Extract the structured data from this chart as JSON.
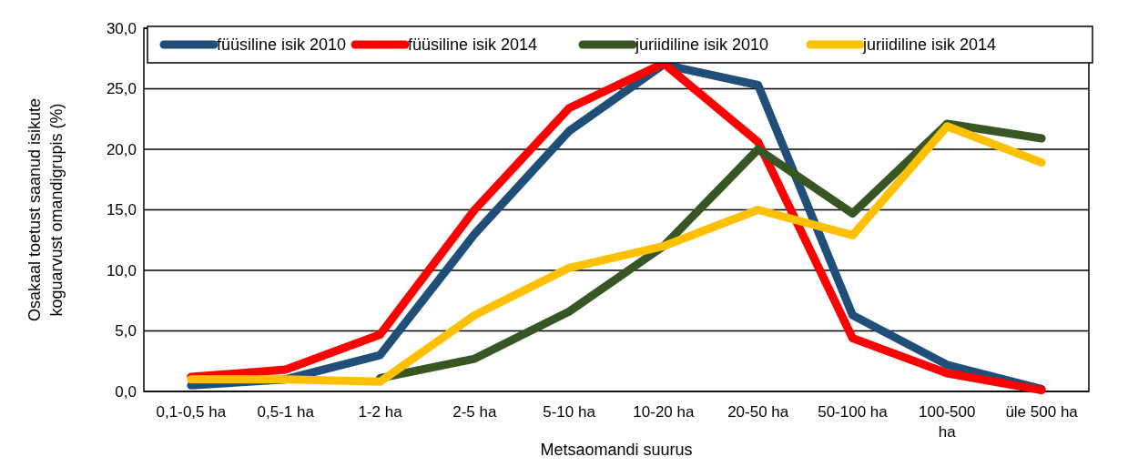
{
  "chart_data": {
    "type": "line",
    "xlabel": "Metsaomandi suurus",
    "ylabel": "Osakaal toetust saanud isikute koguarvust omandigrupis (%)",
    "categories": [
      "0,1-0,5 ha",
      "0,5-1 ha",
      "1-2 ha",
      "2-5 ha",
      "5-10 ha",
      "10-20 ha",
      "20-50 ha",
      "50-100 ha",
      "100-500 ha",
      "üle 500 ha"
    ],
    "series": [
      {
        "name": "füüsiline isik 2010",
        "color": "#1f4e79",
        "values": [
          0.5,
          1.0,
          3.0,
          13.0,
          21.5,
          27.0,
          25.3,
          6.3,
          2.2,
          0.2
        ]
      },
      {
        "name": "füüsiline isik 2014",
        "color": "#ff0000",
        "values": [
          1.2,
          1.8,
          4.7,
          15.0,
          23.4,
          27.1,
          20.6,
          4.4,
          1.5,
          0.1
        ]
      },
      {
        "name": "juriidiline isik 2010",
        "color": "#375623",
        "values": [
          null,
          null,
          1.1,
          2.7,
          6.6,
          12.0,
          20.0,
          14.7,
          22.1,
          20.9
        ]
      },
      {
        "name": "juriidiline isik 2014",
        "color": "#ffc000",
        "values": [
          1.0,
          1.0,
          0.8,
          6.3,
          10.2,
          12.0,
          15.0,
          12.9,
          21.9,
          18.9
        ]
      }
    ],
    "ylim": [
      0,
      30
    ],
    "yticks": [
      {
        "value": 0,
        "label": "0,0"
      },
      {
        "value": 5,
        "label": "5,0"
      },
      {
        "value": 10,
        "label": "10,0"
      },
      {
        "value": 15,
        "label": "15,0"
      },
      {
        "value": 20,
        "label": "20,0"
      },
      {
        "value": 25,
        "label": "25,0"
      },
      {
        "value": 30,
        "label": "30,0"
      }
    ],
    "grid": "y",
    "legend": "top",
    "marker": "none",
    "line_style": "solid"
  }
}
